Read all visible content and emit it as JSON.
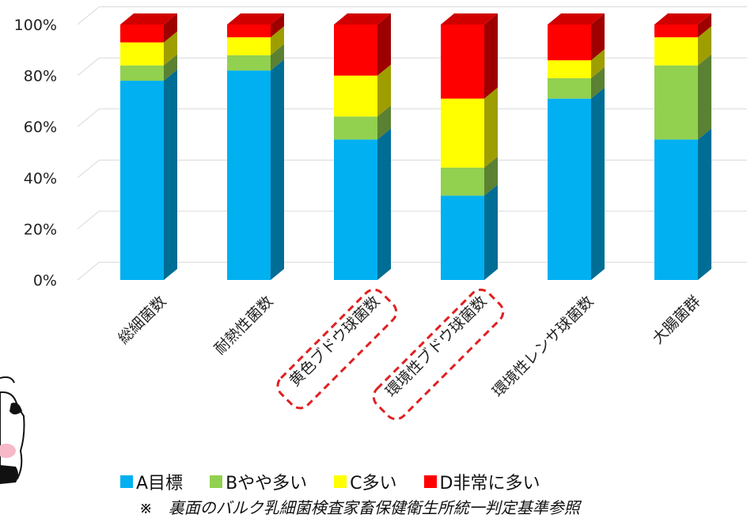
{
  "chart_data": {
    "type": "bar",
    "stacked": true,
    "percent": true,
    "categories": [
      "総細菌数",
      "耐熱性菌数",
      "黄色ブドウ球菌数",
      "環境性ブドウ球菌数",
      "環境性レンサ球菌数",
      "大腸菌群"
    ],
    "highlighted_categories": [
      "黄色ブドウ球菌数",
      "環境性ブドウ球菌数"
    ],
    "series": [
      {
        "name": "A目標",
        "color": "#00B0F0",
        "values": [
          78,
          82,
          55,
          33,
          71,
          55
        ]
      },
      {
        "name": "Bやや多い",
        "color": "#92D050",
        "values": [
          6,
          6,
          9,
          11,
          8,
          29
        ]
      },
      {
        "name": "C多い",
        "color": "#FFFF00",
        "values": [
          9,
          7,
          16,
          27,
          7,
          11
        ]
      },
      {
        "name": "D非常に多い",
        "color": "#FF0000",
        "values": [
          7,
          5,
          20,
          29,
          14,
          5
        ]
      }
    ],
    "yticks": [
      "0%",
      "20%",
      "40%",
      "60%",
      "80%",
      "100%"
    ],
    "ylim": [
      0,
      100
    ],
    "grid": true,
    "legend_position": "bottom",
    "style": "3d-column"
  },
  "footnote": "※　裏面のバルク乳細菌検査家畜保健衛生所統一判定基準参照",
  "colors": {
    "highlight_box": "#E02020",
    "gridline": "#D9D9D9"
  },
  "icons": {
    "mascot": "cow-mascot-icon"
  }
}
